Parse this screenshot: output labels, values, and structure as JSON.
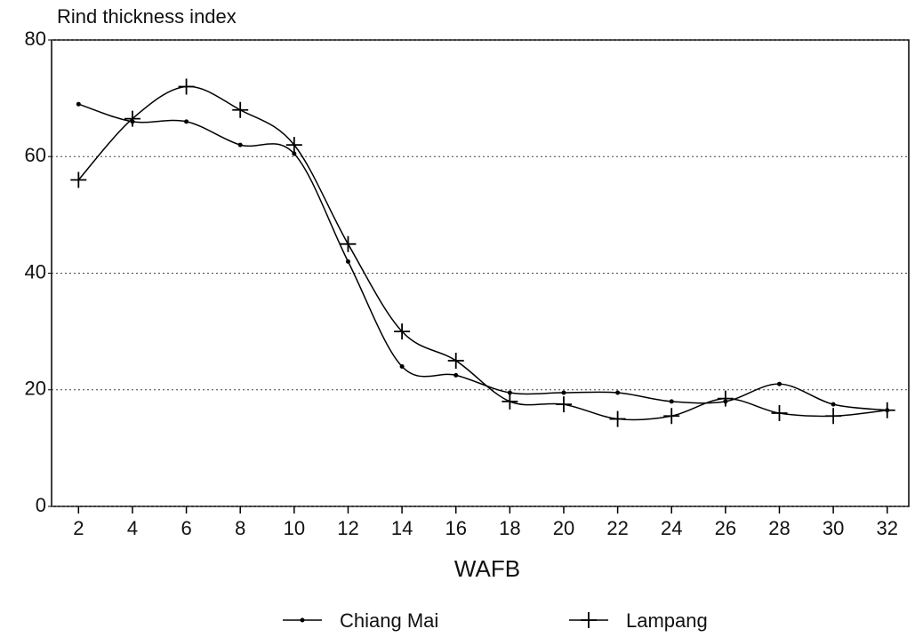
{
  "chart_data": {
    "type": "line",
    "y_label": "Rind thickness index",
    "x_label": "WAFB",
    "x": [
      2,
      4,
      6,
      8,
      10,
      12,
      14,
      16,
      18,
      20,
      22,
      24,
      26,
      28,
      30,
      32
    ],
    "xlim": [
      1,
      32.8
    ],
    "xticks": [
      2,
      4,
      6,
      8,
      10,
      12,
      14,
      16,
      18,
      20,
      22,
      24,
      26,
      28,
      30,
      32
    ],
    "ylim": [
      0,
      80
    ],
    "yticks": [
      0,
      20,
      40,
      60,
      80
    ],
    "grid": true,
    "legend": "bottom",
    "series": [
      {
        "name": "Chiang Mai",
        "color": "#000000",
        "marker": "dot",
        "values": [
          69,
          66,
          66,
          62,
          60.5,
          42,
          24,
          22.5,
          19.5,
          19.5,
          19.5,
          18,
          18,
          21,
          17.5,
          16.5
        ]
      },
      {
        "name": "Lampang",
        "color": "#000000",
        "marker": "plus",
        "values": [
          56,
          66.5,
          72,
          68,
          62,
          45,
          30,
          25,
          18,
          17.5,
          15,
          15.5,
          18.5,
          16,
          15.5,
          16.5
        ]
      }
    ]
  }
}
